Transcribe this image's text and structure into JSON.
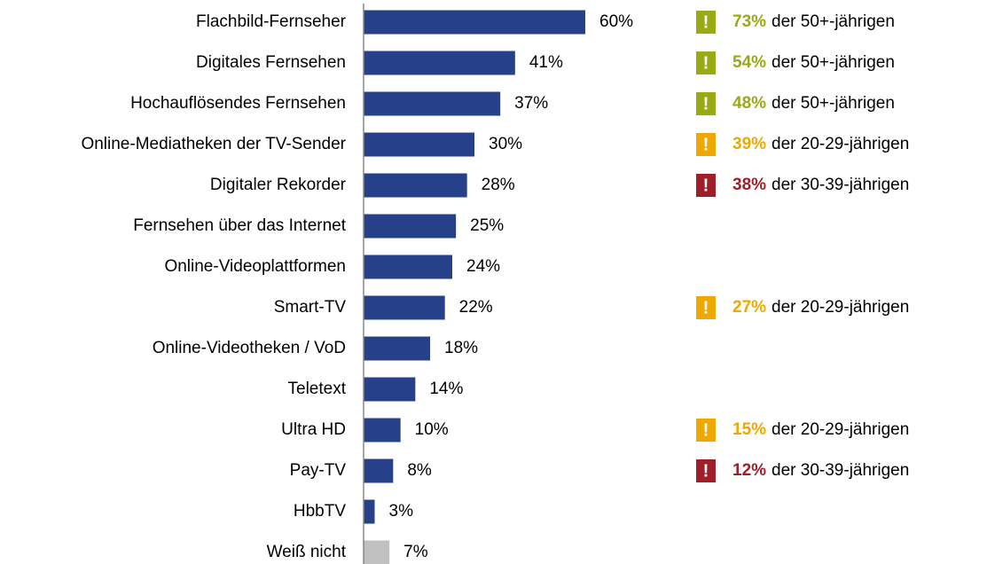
{
  "chart_data": {
    "type": "barh",
    "categories": [
      "Flachbild-Fernseher",
      "Digitales Fernsehen",
      "Hochauflösendes Fernsehen",
      "Online-Mediatheken der TV-Sender",
      "Digitaler Rekorder",
      "Fernsehen über das Internet",
      "Online-Videoplattformen",
      "Smart-TV",
      "Online-Videotheken / VoD",
      "Teletext",
      "Ultra HD",
      "Pay-TV",
      "HbbTV",
      "Weiß nicht"
    ],
    "values": [
      60,
      41,
      37,
      30,
      28,
      25,
      24,
      22,
      18,
      14,
      10,
      8,
      3,
      7
    ],
    "value_labels": [
      "60%",
      "41%",
      "37%",
      "30%",
      "28%",
      "25%",
      "24%",
      "22%",
      "18%",
      "14%",
      "10%",
      "8%",
      "3%",
      "7%"
    ],
    "colors": [
      "#26418a",
      "#26418a",
      "#26418a",
      "#26418a",
      "#26418a",
      "#26418a",
      "#26418a",
      "#26418a",
      "#26418a",
      "#26418a",
      "#26418a",
      "#26418a",
      "#26418a",
      "#c0c0c0"
    ],
    "xlim": [
      0,
      60
    ],
    "marker": "!",
    "annotations": [
      {
        "category": "Flachbild-Fernseher",
        "value": 73,
        "label": "73%",
        "text": "der 50+-jährigen",
        "color": "#9aaa14"
      },
      {
        "category": "Digitales Fernsehen",
        "value": 54,
        "label": "54%",
        "text": "der 50+-jährigen",
        "color": "#9aaa14"
      },
      {
        "category": "Hochauflösendes Fernsehen",
        "value": 48,
        "label": "48%",
        "text": "der 50+-jährigen",
        "color": "#9aaa14"
      },
      {
        "category": "Online-Mediatheken der TV-Sender",
        "value": 39,
        "label": "39%",
        "text": "der 20-29-jährigen",
        "color": "#f0a800"
      },
      {
        "category": "Digitaler Rekorder",
        "value": 38,
        "label": "38%",
        "text": "der 30-39-jährigen",
        "color": "#a01e2a"
      },
      {
        "category": "Smart-TV",
        "value": 27,
        "label": "27%",
        "text": "der 20-29-jährigen",
        "color": "#f0a800"
      },
      {
        "category": "Ultra HD",
        "value": 15,
        "label": "15%",
        "text": "der 20-29-jährigen",
        "color": "#f0a800"
      },
      {
        "category": "Pay-TV",
        "value": 12,
        "label": "12%",
        "text": "der 30-39-jährigen",
        "color": "#a01e2a"
      }
    ]
  }
}
